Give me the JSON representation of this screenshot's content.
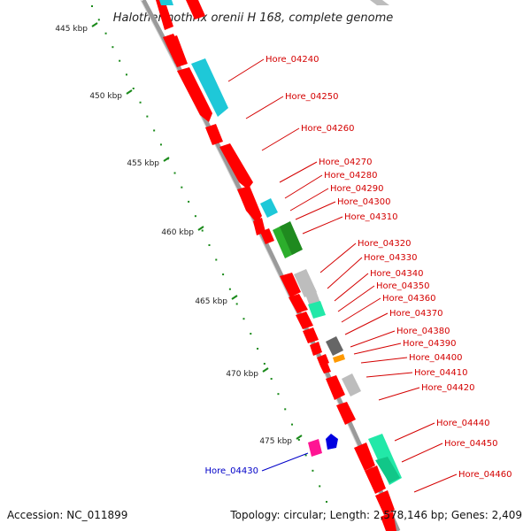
{
  "title": "Halothermothrix orenii H 168, complete genome",
  "footer": {
    "accession": "Accession: NC_011899",
    "topology": "Topology: circular; Length: 2,578,146 bp; Genes: 2,409"
  },
  "scale_ticks": [
    "445 kbp",
    "450 kbp",
    "455 kbp",
    "460 kbp",
    "465 kbp",
    "470 kbp",
    "475 kbp"
  ],
  "gene_labels": [
    "Hore_04240",
    "Hore_04250",
    "Hore_04260",
    "Hore_04270",
    "Hore_04280",
    "Hore_04290",
    "Hore_04300",
    "Hore_04310",
    "Hore_04320",
    "Hore_04330",
    "Hore_04340",
    "Hore_04350",
    "Hore_04360",
    "Hore_04370",
    "Hore_04380",
    "Hore_04390",
    "Hore_04400",
    "Hore_04410",
    "Hore_04420",
    "Hore_04430",
    "Hore_04440",
    "Hore_04450",
    "Hore_04460"
  ],
  "colors": {
    "cds": "#ff0000",
    "cyan_feature": "#1ec8d8",
    "green_feature": "#2cae2c",
    "gray_feature": "#bdbdbd",
    "dark_gray_feature": "#666666",
    "mint_feature": "#22e8a8",
    "orange_feature": "#ff9900",
    "magenta_feature": "#ff1493",
    "blue_feature": "#0000e0",
    "backbone": "#9a9a9a",
    "tick_green": "#1a8a1a",
    "label_red": "#d40000",
    "label_blue": "#0000c8"
  }
}
